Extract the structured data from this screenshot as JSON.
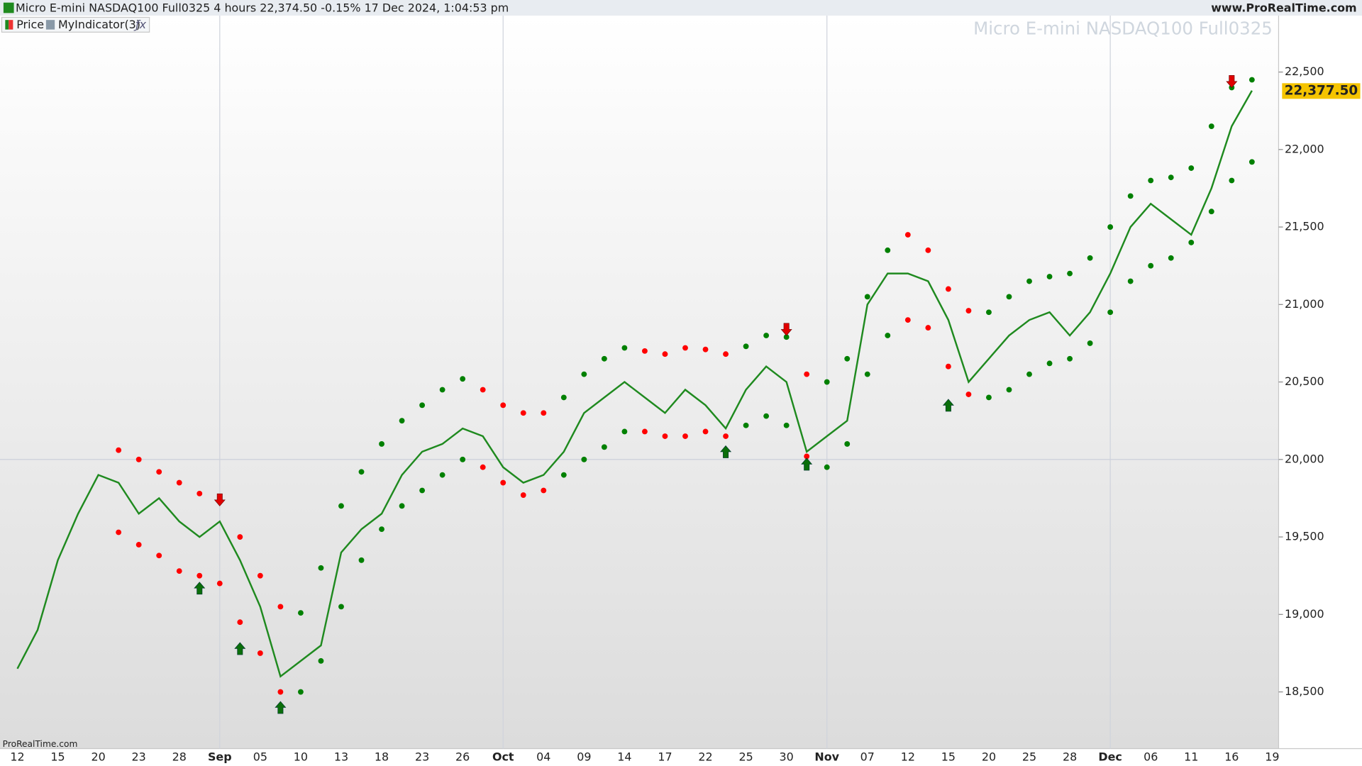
{
  "header": {
    "instrument": "Micro E-mini NASDAQ100 Full0325 4 hours 22,374.50 -0.15% 17 Dec 2024, 1:04:53 pm",
    "site": "www.ProRealTime.com",
    "watermark": "Micro E-mini NASDAQ100 Full0325",
    "footer": "ProRealTime.com"
  },
  "chart_data": {
    "type": "price-bands",
    "categories": [
      "12",
      null,
      "15",
      null,
      "20",
      null,
      "23",
      null,
      "28",
      null,
      "Sep",
      null,
      "05",
      null,
      "10",
      null,
      "13",
      null,
      "18",
      null,
      "23",
      null,
      "26",
      null,
      "Oct",
      null,
      "04",
      null,
      "09",
      null,
      "14",
      null,
      "17",
      null,
      "22",
      null,
      "25",
      null,
      "30",
      null,
      "Nov",
      null,
      "07",
      null,
      "12",
      null,
      "15",
      null,
      "20",
      null,
      "25",
      null,
      "28",
      null,
      "Dec",
      null,
      "06",
      null,
      "11",
      null,
      "16",
      null,
      "19"
    ],
    "series": [
      {
        "name": "Price",
        "color": "#1f8a1f",
        "values": [
          18650,
          18900,
          19350,
          19650,
          19900,
          19850,
          19650,
          19750,
          19600,
          19500,
          19600,
          19350,
          19050,
          18600,
          18700,
          18800,
          19400,
          19550,
          19650,
          19900,
          20050,
          20100,
          20200,
          20150,
          19950,
          19850,
          19900,
          20050,
          20300,
          20400,
          20500,
          20400,
          20300,
          20450,
          20350,
          20200,
          20450,
          20600,
          20500,
          20050,
          20150,
          20250,
          21000,
          21200,
          21200,
          21150,
          20900,
          20500,
          20650,
          20800,
          20900,
          20950,
          20800,
          20950,
          21200,
          21500,
          21650,
          21550,
          21450,
          21750,
          22150,
          22380,
          null
        ]
      },
      {
        "name": "MyIndicator(3)",
        "color": "#8a9aa8",
        "values": [
          null,
          null,
          null,
          null,
          null,
          20060,
          20000,
          19920,
          19850,
          19780,
          19730,
          19500,
          19250,
          19050,
          19010,
          19300,
          19700,
          19920,
          20100,
          20250,
          20350,
          20450,
          20520,
          20450,
          20350,
          20300,
          20300,
          20400,
          20550,
          20650,
          20720,
          20700,
          20680,
          20720,
          20710,
          20680,
          20730,
          20800,
          20790,
          20550,
          20500,
          20650,
          21050,
          21350,
          21450,
          21350,
          21100,
          20960,
          20950,
          21050,
          21150,
          21180,
          21200,
          21300,
          21500,
          21700,
          21800,
          21820,
          21880,
          22150,
          22400,
          22450,
          null
        ],
        "lower": [
          null,
          null,
          null,
          null,
          null,
          19530,
          19450,
          19380,
          19280,
          19250,
          19200,
          18950,
          18750,
          18500,
          18500,
          18700,
          19050,
          19350,
          19550,
          19700,
          19800,
          19900,
          20000,
          19950,
          19850,
          19770,
          19800,
          19900,
          20000,
          20080,
          20180,
          20180,
          20150,
          20150,
          20180,
          20150,
          20220,
          20280,
          20220,
          20020,
          19950,
          20100,
          20550,
          20800,
          20900,
          20850,
          20600,
          20420,
          20400,
          20450,
          20550,
          20620,
          20650,
          20750,
          20950,
          21150,
          21250,
          21300,
          21400,
          21600,
          21800,
          21920,
          null
        ],
        "band_colors": [
          null,
          null,
          null,
          null,
          null,
          "#ff0000",
          "#ff0000",
          "#ff0000",
          "#ff0000",
          "#ff0000",
          "#ff0000",
          "#ff0000",
          "#ff0000",
          "#ff0000",
          "#008000",
          "#008000",
          "#008000",
          "#008000",
          "#008000",
          "#008000",
          "#008000",
          "#008000",
          "#008000",
          "#ff0000",
          "#ff0000",
          "#ff0000",
          "#ff0000",
          "#008000",
          "#008000",
          "#008000",
          "#008000",
          "#ff0000",
          "#ff0000",
          "#ff0000",
          "#ff0000",
          "#ff0000",
          "#008000",
          "#008000",
          "#008000",
          "#ff0000",
          "#008000",
          "#008000",
          "#008000",
          "#008000",
          "#ff0000",
          "#ff0000",
          "#ff0000",
          "#ff0000",
          "#008000",
          "#008000",
          "#008000",
          "#008000",
          "#008000",
          "#008000",
          "#008000",
          "#008000",
          "#008000",
          "#008000",
          "#008000",
          "#008000",
          "#008000",
          "#008000",
          null
        ]
      }
    ],
    "signals": {
      "up_color": "#0a6e0a",
      "down_color": "#e00000",
      "up": [
        null,
        null,
        null,
        null,
        null,
        null,
        null,
        null,
        null,
        19220,
        null,
        18830,
        null,
        18450,
        null,
        null,
        null,
        null,
        null,
        null,
        null,
        null,
        null,
        null,
        null,
        null,
        null,
        null,
        null,
        null,
        null,
        null,
        null,
        null,
        null,
        20100,
        null,
        null,
        null,
        20020,
        null,
        null,
        null,
        null,
        null,
        null,
        20400,
        null,
        null,
        null,
        null,
        null,
        null,
        null,
        null,
        null,
        null,
        null,
        null,
        null,
        null,
        null,
        null
      ],
      "down": [
        null,
        null,
        null,
        null,
        null,
        null,
        null,
        null,
        null,
        null,
        19700,
        null,
        null,
        null,
        null,
        null,
        null,
        null,
        null,
        null,
        null,
        null,
        null,
        null,
        null,
        null,
        null,
        null,
        null,
        null,
        null,
        null,
        null,
        null,
        null,
        null,
        null,
        null,
        20800,
        null,
        null,
        null,
        null,
        null,
        null,
        null,
        null,
        null,
        null,
        null,
        null,
        null,
        null,
        null,
        null,
        null,
        null,
        null,
        null,
        null,
        22400,
        null,
        null
      ]
    },
    "ylim": [
      18134,
      22864
    ],
    "yticks": [
      {
        "value": 18500,
        "label": "18,500"
      },
      {
        "value": 19000,
        "label": "19,000"
      },
      {
        "value": 19500,
        "label": "19,500"
      },
      {
        "value": 20000,
        "label": "20,000"
      },
      {
        "value": 20500,
        "label": "20,500"
      },
      {
        "value": 21000,
        "label": "21,000"
      },
      {
        "value": 21500,
        "label": "21,500"
      },
      {
        "value": 22000,
        "label": "22,000"
      },
      {
        "value": 22500,
        "label": "22,500"
      }
    ],
    "hline": 20000,
    "last_price": {
      "value": 22377.5,
      "label": "22,377.50"
    },
    "last_price_color": "#f5c400"
  }
}
